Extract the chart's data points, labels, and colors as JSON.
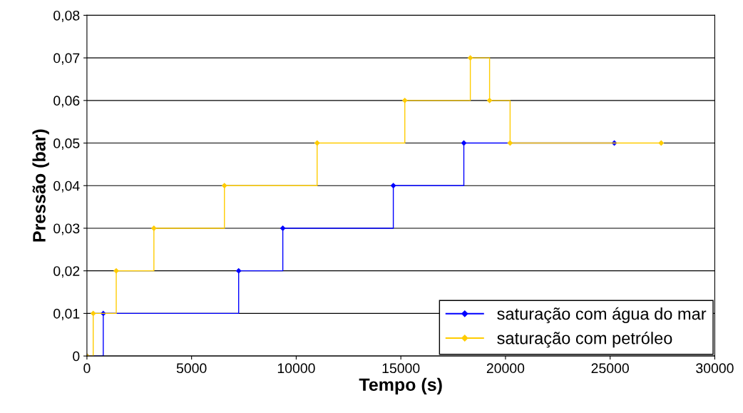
{
  "chart_data": {
    "type": "step",
    "xlabel": "Tempo (s)",
    "ylabel": "Pressão (bar)",
    "xlim": [
      0,
      30000
    ],
    "xticks": [
      0,
      5000,
      10000,
      15000,
      20000,
      25000,
      30000
    ],
    "ylim": [
      0,
      0.08
    ],
    "yticks": [
      0,
      {
        "value": 0.01,
        "label": "0,01"
      },
      {
        "value": 0.02,
        "label": "0,02"
      },
      {
        "value": 0.03,
        "label": "0,03"
      },
      {
        "value": 0.04,
        "label": "0,04"
      },
      {
        "value": 0.05,
        "label": "0,05"
      },
      {
        "value": 0.06,
        "label": "0,06"
      },
      {
        "value": 0.07,
        "label": "0,07"
      },
      {
        "value": 0.08,
        "label": "0,08"
      }
    ],
    "grid": "y",
    "legend": "bottom right",
    "marker": "diamond",
    "line_style": "solid",
    "series": [
      {
        "name": "saturação com água do mar",
        "color": "#0000ff",
        "x": [
          0,
          780,
          7250,
          9360,
          14640,
          18010,
          25200
        ],
        "values": [
          0,
          0.01,
          0.02,
          0.03,
          0.04,
          0.05,
          0.05
        ]
      },
      {
        "name": "saturação com petróleo",
        "color": "#ffcc00",
        "x": [
          0,
          300,
          1400,
          3200,
          6570,
          11000,
          15190,
          18320,
          19240,
          20220,
          27440
        ],
        "values": [
          0,
          0.01,
          0.02,
          0.03,
          0.04,
          0.05,
          0.06,
          0.07,
          0.06,
          0.05,
          0.05
        ]
      }
    ]
  }
}
